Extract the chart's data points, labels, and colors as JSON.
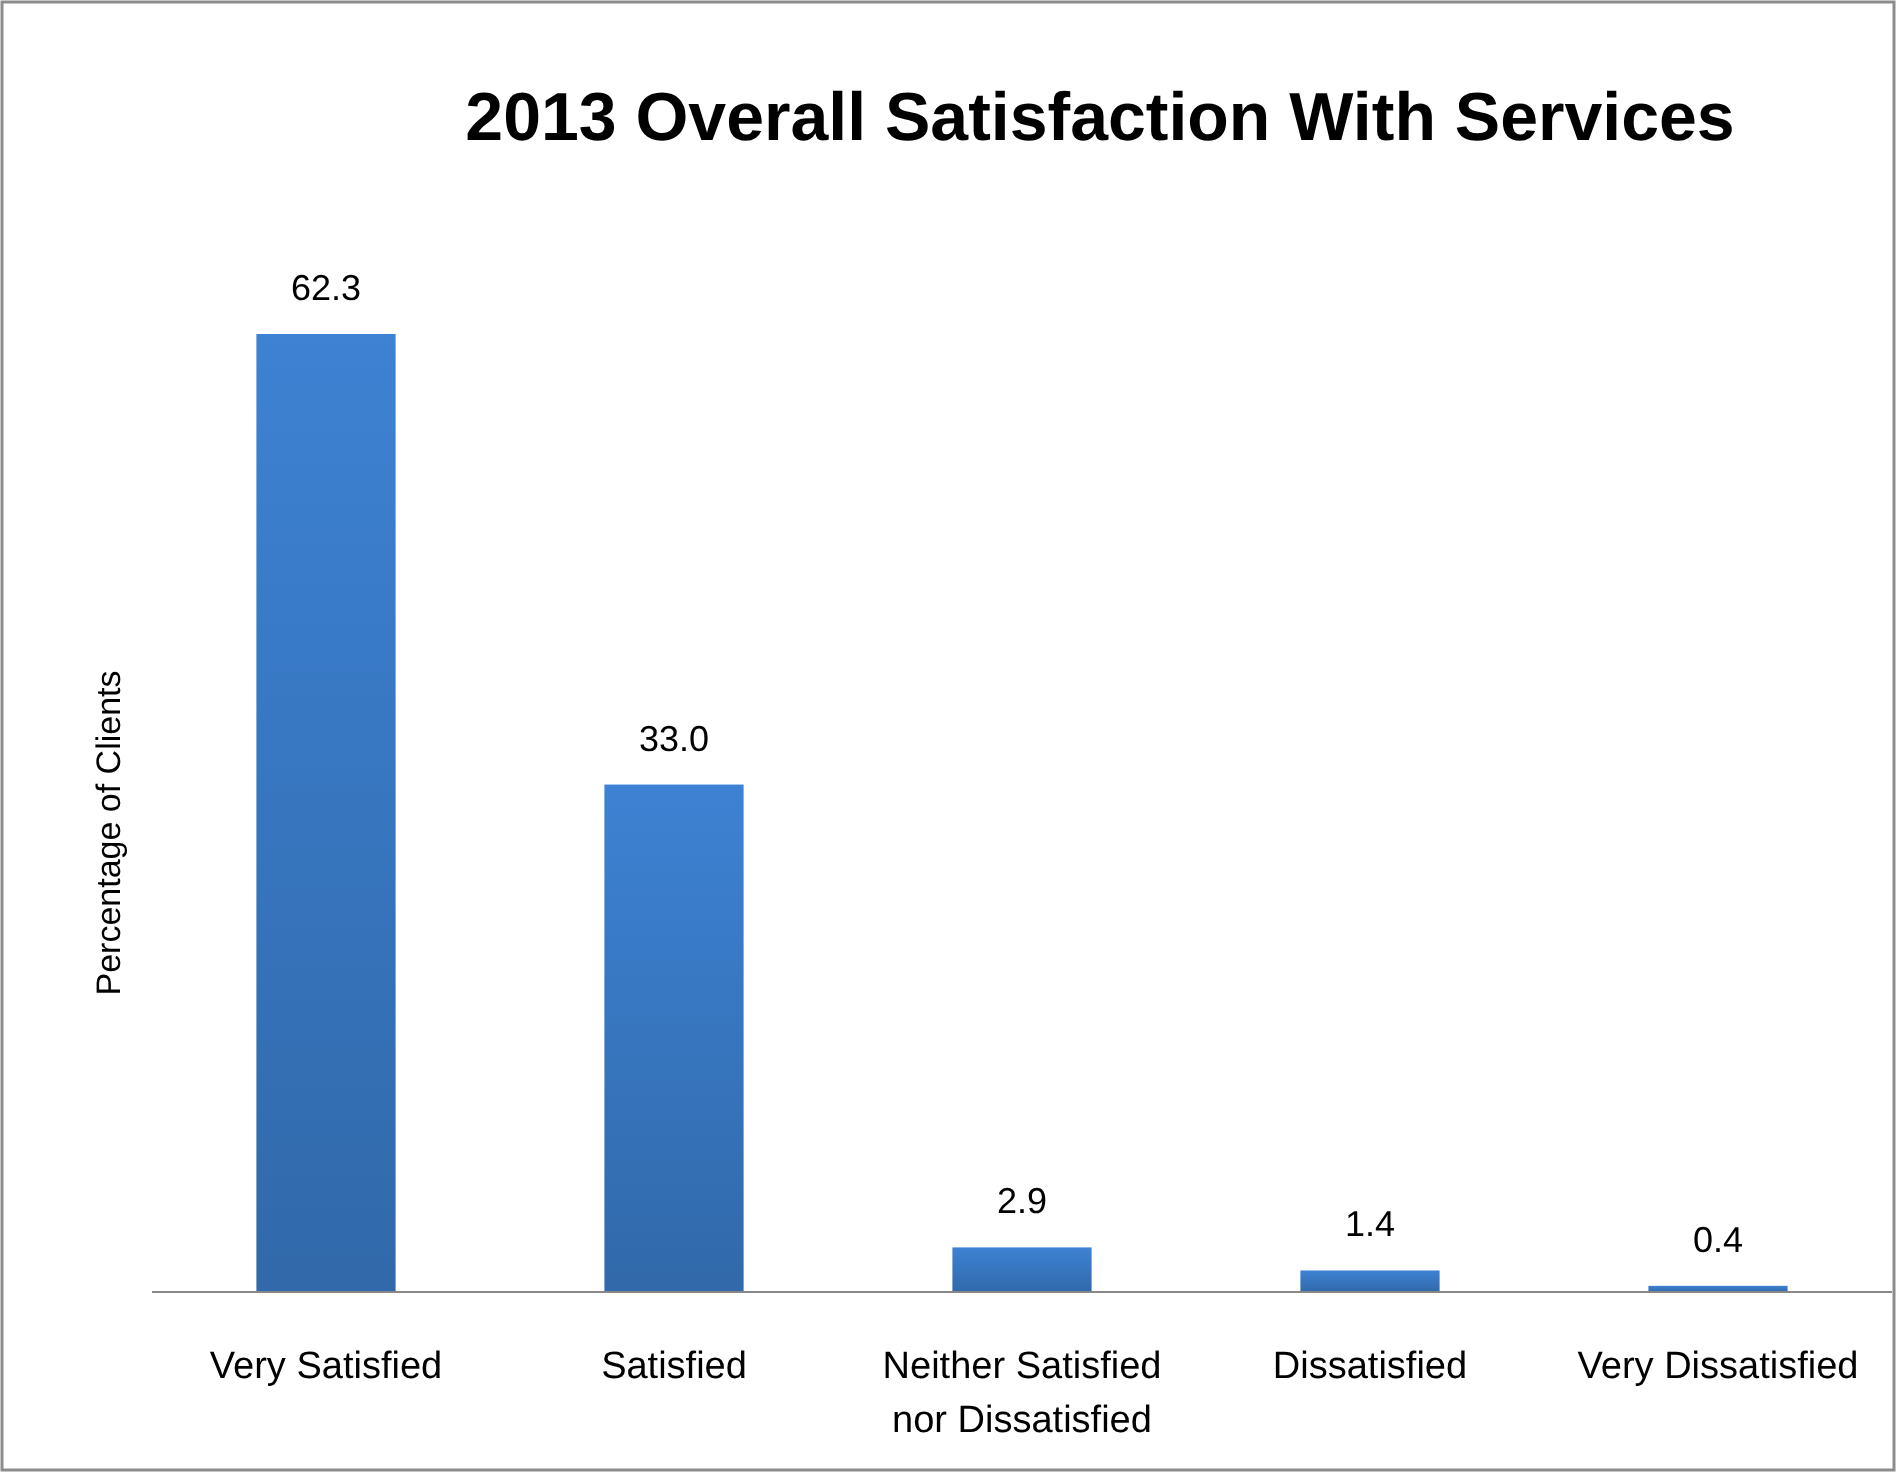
{
  "chart_data": {
    "type": "bar",
    "title": "2013 Overall Satisfaction With Services",
    "ylabel": "Percentage of Clients",
    "categories": [
      "Very Satisfied",
      "Satisfied",
      "Neither Satisfied nor Dissatisfied",
      "Dissatisfied",
      "Very Dissatisfied"
    ],
    "values": [
      62.3,
      33.0,
      2.9,
      1.4,
      0.4
    ],
    "value_labels": [
      "62.3",
      "33.0",
      "2.9",
      "1.4",
      "0.4"
    ],
    "color": "#3a7bc8"
  }
}
